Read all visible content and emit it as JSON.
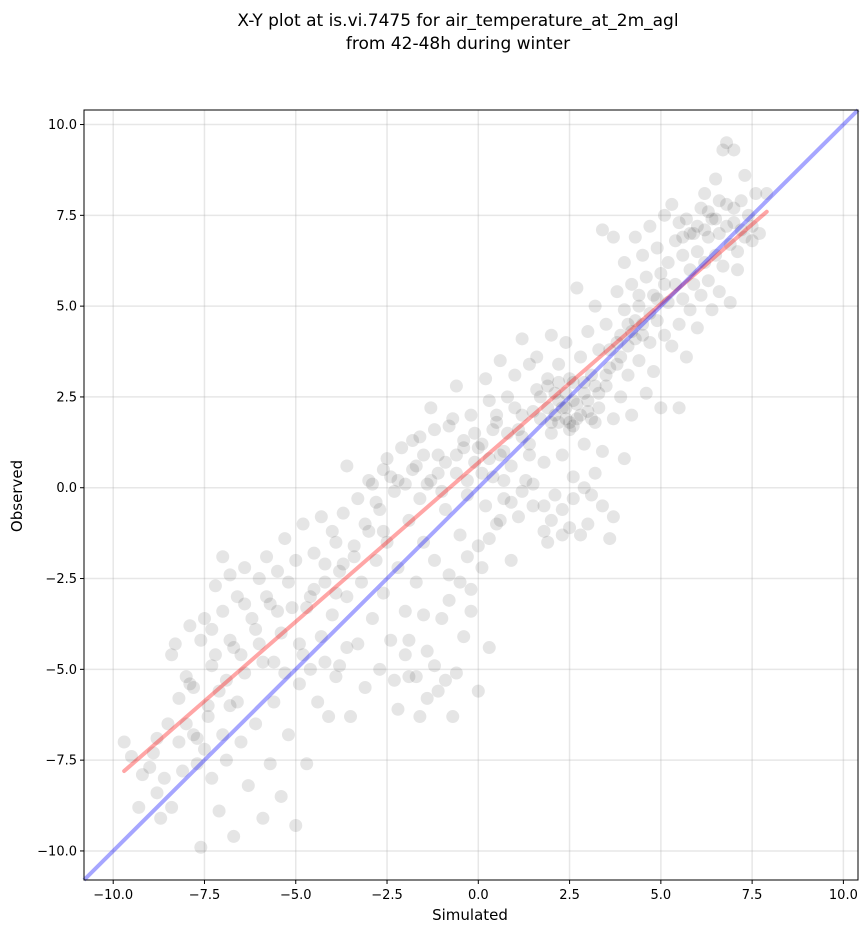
{
  "chart_data": {
    "type": "scatter",
    "title": [
      "X-Y plot at is.vi.7475 for air_temperature_at_2m_agl",
      "from 42-48h during winter"
    ],
    "xlabel": "Simulated",
    "ylabel": "Observed",
    "xlim": [
      -10.8,
      10.4
    ],
    "ylim": [
      -10.8,
      10.4
    ],
    "x_ticks": [
      -10.0,
      -7.5,
      -5.0,
      -2.5,
      0.0,
      2.5,
      5.0,
      7.5,
      10.0
    ],
    "y_ticks": [
      -10.0,
      -7.5,
      -5.0,
      -2.5,
      0.0,
      2.5,
      5.0,
      7.5,
      10.0
    ],
    "x_tick_labels": [
      "−10.0",
      "−7.5",
      "−5.0",
      "−2.5",
      "0.0",
      "2.5",
      "5.0",
      "7.5",
      "10.0"
    ],
    "y_tick_labels": [
      "−10.0",
      "−7.5",
      "−5.0",
      "−2.5",
      "0.0",
      "2.5",
      "5.0",
      "7.5",
      "10.0"
    ],
    "grid": true,
    "point_color": "#000000",
    "regression_line": {
      "color": "#ff0000",
      "x": [
        -9.7,
        7.9
      ],
      "y": [
        -7.8,
        7.6
      ]
    },
    "identity_line": {
      "color": "#0000ff",
      "x": [
        -10.8,
        10.4
      ],
      "y": [
        -10.8,
        10.4
      ]
    },
    "points": [
      [
        -9.7,
        -7.0
      ],
      [
        -9.5,
        -7.4
      ],
      [
        -9.3,
        -8.8
      ],
      [
        -9.0,
        -7.7
      ],
      [
        -8.9,
        -7.3
      ],
      [
        -8.8,
        -8.4
      ],
      [
        -8.7,
        -9.1
      ],
      [
        -8.6,
        -8.0
      ],
      [
        -8.5,
        -6.5
      ],
      [
        -8.4,
        -8.8
      ],
      [
        -8.4,
        -4.6
      ],
      [
        -8.3,
        -4.3
      ],
      [
        -8.2,
        -7.0
      ],
      [
        -8.1,
        -7.8
      ],
      [
        -8.0,
        -5.2
      ],
      [
        -7.9,
        -3.8
      ],
      [
        -7.8,
        -6.8
      ],
      [
        -7.8,
        -5.5
      ],
      [
        -7.7,
        -7.6
      ],
      [
        -7.6,
        -9.9
      ],
      [
        -7.6,
        -4.2
      ],
      [
        -7.5,
        -7.2
      ],
      [
        -7.5,
        -3.6
      ],
      [
        -7.4,
        -6.3
      ],
      [
        -7.3,
        -8.0
      ],
      [
        -7.3,
        -4.9
      ],
      [
        -7.2,
        -2.7
      ],
      [
        -7.1,
        -8.9
      ],
      [
        -7.1,
        -5.6
      ],
      [
        -7.0,
        -3.4
      ],
      [
        -7.0,
        -1.9
      ],
      [
        -6.9,
        -7.5
      ],
      [
        -6.8,
        -6.0
      ],
      [
        -6.8,
        -2.4
      ],
      [
        -6.7,
        -9.6
      ],
      [
        -6.7,
        -4.4
      ],
      [
        -6.6,
        -3.0
      ],
      [
        -6.5,
        -7.0
      ],
      [
        -6.4,
        -5.1
      ],
      [
        -6.4,
        -2.2
      ],
      [
        -6.3,
        -8.2
      ],
      [
        -6.2,
        -3.6
      ],
      [
        -6.1,
        -6.5
      ],
      [
        -6.0,
        -2.5
      ],
      [
        -5.9,
        -9.1
      ],
      [
        -5.9,
        -4.8
      ],
      [
        -5.8,
        -1.9
      ],
      [
        -5.7,
        -7.6
      ],
      [
        -5.7,
        -3.2
      ],
      [
        -5.6,
        -5.9
      ],
      [
        -5.5,
        -2.3
      ],
      [
        -5.4,
        -8.5
      ],
      [
        -5.4,
        -4.0
      ],
      [
        -5.3,
        -1.4
      ],
      [
        -5.2,
        -6.8
      ],
      [
        -5.1,
        -3.3
      ],
      [
        -5.0,
        -9.3
      ],
      [
        -5.0,
        -2.0
      ],
      [
        -4.9,
        -5.4
      ],
      [
        -4.8,
        -4.6
      ],
      [
        -4.8,
        -1.0
      ],
      [
        -4.7,
        -7.6
      ],
      [
        -4.6,
        -3.0
      ],
      [
        -4.5,
        -1.8
      ],
      [
        -4.4,
        -5.9
      ],
      [
        -4.3,
        -4.1
      ],
      [
        -4.3,
        -0.8
      ],
      [
        -4.2,
        -2.6
      ],
      [
        -4.1,
        -6.3
      ],
      [
        -4.0,
        -3.5
      ],
      [
        -3.9,
        -1.5
      ],
      [
        -3.8,
        -4.9
      ],
      [
        -3.8,
        -2.3
      ],
      [
        -3.7,
        -0.7
      ],
      [
        -3.6,
        0.6
      ],
      [
        -3.6,
        -3.0
      ],
      [
        -3.5,
        -6.3
      ],
      [
        -3.4,
        -1.9
      ],
      [
        -3.3,
        -4.3
      ],
      [
        -3.3,
        -0.3
      ],
      [
        -3.2,
        -2.6
      ],
      [
        -3.1,
        -5.5
      ],
      [
        -3.0,
        -1.2
      ],
      [
        -3.0,
        0.2
      ],
      [
        -2.9,
        -3.6
      ],
      [
        -2.8,
        -2.0
      ],
      [
        -2.7,
        -5.0
      ],
      [
        -2.7,
        -0.6
      ],
      [
        -2.6,
        -2.9
      ],
      [
        -2.5,
        0.8
      ],
      [
        -2.5,
        -1.5
      ],
      [
        -2.4,
        -4.2
      ],
      [
        -2.3,
        -0.1
      ],
      [
        -2.2,
        -6.1
      ],
      [
        -2.2,
        -2.2
      ],
      [
        -2.1,
        1.1
      ],
      [
        -2.0,
        -3.4
      ],
      [
        -1.9,
        -0.9
      ],
      [
        -1.9,
        -5.2
      ],
      [
        -1.8,
        0.5
      ],
      [
        -1.7,
        -2.6
      ],
      [
        -1.6,
        -6.3
      ],
      [
        -1.6,
        1.4
      ],
      [
        -1.5,
        -1.5
      ],
      [
        -1.4,
        -4.5
      ],
      [
        -1.4,
        0.1
      ],
      [
        -1.3,
        2.2
      ],
      [
        -1.2,
        -2.0
      ],
      [
        -1.1,
        -5.6
      ],
      [
        -1.1,
        0.9
      ],
      [
        -1.0,
        -3.6
      ],
      [
        -0.9,
        -0.6
      ],
      [
        -0.8,
        1.7
      ],
      [
        -0.8,
        -2.4
      ],
      [
        -0.7,
        -6.3
      ],
      [
        -0.6,
        0.4
      ],
      [
        -0.6,
        2.8
      ],
      [
        -0.5,
        -1.3
      ],
      [
        -0.4,
        -4.1
      ],
      [
        -0.4,
        1.3
      ],
      [
        -0.3,
        -0.2
      ],
      [
        -0.2,
        -2.8
      ],
      [
        -0.2,
        2.0
      ],
      [
        -0.1,
        0.7
      ],
      [
        0.0,
        -5.6
      ],
      [
        0.0,
        -1.6
      ],
      [
        0.1,
        1.2
      ],
      [
        0.2,
        3.0
      ],
      [
        0.2,
        -0.5
      ],
      [
        0.3,
        -4.4
      ],
      [
        0.3,
        2.4
      ],
      [
        0.4,
        0.3
      ],
      [
        0.5,
        -1.0
      ],
      [
        0.5,
        1.8
      ],
      [
        0.6,
        3.5
      ],
      [
        0.7,
        -0.3
      ],
      [
        0.7,
        1.0
      ],
      [
        0.8,
        2.5
      ],
      [
        0.9,
        -2.0
      ],
      [
        0.9,
        0.6
      ],
      [
        1.0,
        3.1
      ],
      [
        1.1,
        1.6
      ],
      [
        1.1,
        -0.8
      ],
      [
        1.2,
        4.1
      ],
      [
        1.2,
        2.0
      ],
      [
        1.3,
        0.2
      ],
      [
        1.4,
        3.4
      ],
      [
        1.4,
        1.2
      ],
      [
        1.5,
        -0.5
      ],
      [
        1.6,
        2.7
      ],
      [
        1.6,
        3.6
      ],
      [
        1.7,
        1.9
      ],
      [
        1.8,
        0.7
      ],
      [
        1.8,
        -1.2
      ],
      [
        1.9,
        3.0
      ],
      [
        1.9,
        2.2
      ],
      [
        2.0,
        4.2
      ],
      [
        2.0,
        1.5
      ],
      [
        2.1,
        -0.2
      ],
      [
        2.1,
        2.6
      ],
      [
        2.2,
        3.4
      ],
      [
        2.2,
        1.8
      ],
      [
        2.3,
        0.9
      ],
      [
        2.3,
        -1.3
      ],
      [
        2.4,
        2.2
      ],
      [
        2.4,
        4.0
      ],
      [
        2.5,
        1.6
      ],
      [
        2.5,
        3.0
      ],
      [
        2.6,
        2.4
      ],
      [
        2.6,
        0.3
      ],
      [
        2.7,
        5.5
      ],
      [
        2.7,
        1.9
      ],
      [
        2.8,
        3.6
      ],
      [
        2.8,
        -1.3
      ],
      [
        2.9,
        2.6
      ],
      [
        2.9,
        1.2
      ],
      [
        3.0,
        4.3
      ],
      [
        3.0,
        2.1
      ],
      [
        3.1,
        3.1
      ],
      [
        3.1,
        -0.2
      ],
      [
        3.2,
        1.8
      ],
      [
        3.2,
        5.0
      ],
      [
        3.3,
        2.6
      ],
      [
        3.3,
        3.8
      ],
      [
        3.4,
        7.1
      ],
      [
        3.4,
        1.0
      ],
      [
        3.5,
        2.8
      ],
      [
        3.5,
        4.5
      ],
      [
        3.6,
        -1.4
      ],
      [
        3.6,
        3.3
      ],
      [
        3.7,
        6.9
      ],
      [
        3.7,
        1.9
      ],
      [
        3.8,
        4.0
      ],
      [
        3.8,
        5.4
      ],
      [
        3.9,
        2.5
      ],
      [
        3.9,
        3.6
      ],
      [
        4.0,
        6.2
      ],
      [
        4.0,
        0.8
      ],
      [
        4.1,
        4.5
      ],
      [
        4.1,
        3.1
      ],
      [
        4.2,
        5.6
      ],
      [
        4.2,
        2.0
      ],
      [
        4.3,
        4.1
      ],
      [
        4.3,
        6.9
      ],
      [
        4.4,
        3.5
      ],
      [
        4.4,
        5.0
      ],
      [
        4.5,
        6.4
      ],
      [
        4.5,
        4.5
      ],
      [
        4.6,
        2.6
      ],
      [
        4.6,
        5.8
      ],
      [
        4.7,
        4.0
      ],
      [
        4.7,
        7.2
      ],
      [
        4.8,
        5.3
      ],
      [
        4.8,
        3.2
      ],
      [
        4.9,
        6.6
      ],
      [
        4.9,
        4.6
      ],
      [
        5.0,
        5.9
      ],
      [
        5.0,
        2.2
      ],
      [
        5.1,
        7.5
      ],
      [
        5.1,
        4.2
      ],
      [
        5.2,
        6.2
      ],
      [
        5.2,
        5.1
      ],
      [
        5.3,
        3.9
      ],
      [
        5.3,
        7.8
      ],
      [
        5.4,
        5.6
      ],
      [
        5.4,
        6.8
      ],
      [
        5.5,
        4.5
      ],
      [
        5.5,
        2.2
      ],
      [
        5.6,
        6.4
      ],
      [
        5.6,
        5.2
      ],
      [
        5.7,
        7.4
      ],
      [
        5.7,
        3.6
      ],
      [
        5.8,
        6.0
      ],
      [
        5.8,
        4.9
      ],
      [
        5.9,
        7.0
      ],
      [
        5.9,
        5.6
      ],
      [
        6.0,
        6.5
      ],
      [
        6.0,
        4.4
      ],
      [
        6.1,
        7.7
      ],
      [
        6.1,
        5.3
      ],
      [
        6.2,
        6.2
      ],
      [
        6.2,
        8.1
      ],
      [
        6.3,
        5.7
      ],
      [
        6.3,
        6.9
      ],
      [
        6.4,
        4.9
      ],
      [
        6.4,
        7.4
      ],
      [
        6.5,
        6.4
      ],
      [
        6.5,
        8.5
      ],
      [
        6.6,
        5.4
      ],
      [
        6.6,
        7.0
      ],
      [
        6.7,
        9.3
      ],
      [
        6.7,
        6.1
      ],
      [
        6.8,
        7.8
      ],
      [
        6.8,
        9.5
      ],
      [
        6.9,
        6.7
      ],
      [
        6.9,
        5.1
      ],
      [
        7.0,
        7.3
      ],
      [
        7.0,
        9.3
      ],
      [
        7.1,
        6.5
      ],
      [
        7.1,
        6.0
      ],
      [
        7.2,
        7.9
      ],
      [
        7.2,
        7.1
      ],
      [
        7.3,
        8.6
      ],
      [
        7.3,
        6.9
      ],
      [
        7.4,
        7.5
      ],
      [
        7.5,
        6.8
      ],
      [
        7.6,
        8.1
      ],
      [
        7.7,
        7.0
      ],
      [
        7.9,
        8.1
      ],
      [
        7.5,
        7.2
      ],
      [
        -1.8,
        1.3
      ],
      [
        -1.5,
        0.9
      ],
      [
        -1.2,
        1.6
      ],
      [
        -0.9,
        0.7
      ],
      [
        -0.7,
        1.9
      ],
      [
        -0.4,
        1.1
      ],
      [
        -0.1,
        1.5
      ],
      [
        0.1,
        0.4
      ],
      [
        -2.4,
        0.3
      ],
      [
        -2.8,
        -0.4
      ],
      [
        -3.1,
        -1.0
      ],
      [
        -2.6,
        -1.2
      ],
      [
        -2.0,
        0.1
      ],
      [
        -1.6,
        -0.3
      ],
      [
        -1.3,
        0.2
      ],
      [
        -1.0,
        -0.1
      ],
      [
        -3.4,
        -1.6
      ],
      [
        -3.7,
        -2.1
      ],
      [
        -3.9,
        -2.9
      ],
      [
        -4.2,
        -2.1
      ],
      [
        -4.5,
        -2.8
      ],
      [
        -4.0,
        -1.2
      ],
      [
        -4.7,
        -3.3
      ],
      [
        -5.2,
        -2.6
      ],
      [
        -5.5,
        -3.4
      ],
      [
        -5.8,
        -3.0
      ],
      [
        -6.1,
        -3.9
      ],
      [
        -6.4,
        -3.2
      ],
      [
        -6.8,
        -4.2
      ],
      [
        -7.2,
        -4.6
      ],
      [
        1.5,
        2.1
      ],
      [
        1.7,
        2.5
      ],
      [
        1.9,
        2.8
      ],
      [
        2.1,
        2.0
      ],
      [
        2.2,
        2.9
      ],
      [
        2.3,
        2.2
      ],
      [
        2.4,
        2.6
      ],
      [
        2.5,
        1.8
      ],
      [
        2.6,
        2.9
      ],
      [
        2.7,
        2.3
      ],
      [
        2.8,
        2.0
      ],
      [
        2.9,
        2.9
      ],
      [
        3.0,
        2.4
      ],
      [
        3.1,
        1.9
      ],
      [
        3.2,
        2.8
      ],
      [
        3.3,
        2.2
      ],
      [
        2.0,
        1.8
      ],
      [
        2.2,
        2.4
      ],
      [
        2.4,
        1.9
      ],
      [
        2.6,
        1.7
      ],
      [
        1.2,
        1.4
      ],
      [
        1.4,
        0.9
      ],
      [
        0.8,
        1.5
      ],
      [
        0.6,
        0.9
      ],
      [
        0.4,
        1.6
      ],
      [
        1.0,
        2.2
      ],
      [
        0.5,
        2.0
      ],
      [
        3.6,
        3.8
      ],
      [
        3.9,
        4.2
      ],
      [
        4.1,
        3.9
      ],
      [
        4.3,
        4.6
      ],
      [
        4.5,
        4.2
      ],
      [
        4.7,
        4.8
      ],
      [
        4.9,
        5.2
      ],
      [
        5.1,
        5.6
      ],
      [
        3.5,
        3.1
      ],
      [
        3.8,
        3.4
      ],
      [
        4.0,
        4.9
      ],
      [
        4.2,
        4.3
      ],
      [
        4.4,
        5.3
      ],
      [
        6.0,
        7.2
      ],
      [
        6.3,
        7.6
      ],
      [
        6.5,
        7.4
      ],
      [
        6.6,
        7.9
      ],
      [
        6.8,
        7.2
      ],
      [
        7.0,
        7.7
      ],
      [
        6.2,
        7.1
      ],
      [
        5.8,
        7.0
      ],
      [
        5.6,
        6.9
      ],
      [
        5.5,
        7.3
      ],
      [
        -8.0,
        -6.5
      ],
      [
        -7.7,
        -6.9
      ],
      [
        -7.4,
        -6.0
      ],
      [
        -7.0,
        -6.8
      ],
      [
        -6.6,
        -5.9
      ],
      [
        -8.2,
        -5.8
      ],
      [
        -7.9,
        -5.4
      ],
      [
        -9.2,
        -7.9
      ],
      [
        -8.8,
        -6.9
      ],
      [
        -6.5,
        -4.6
      ],
      [
        -6.9,
        -5.3
      ],
      [
        -7.3,
        -3.9
      ],
      [
        -6.0,
        -4.3
      ],
      [
        -5.6,
        -4.8
      ],
      [
        -5.3,
        -5.1
      ],
      [
        -4.9,
        -4.3
      ],
      [
        -4.6,
        -5.0
      ],
      [
        -4.2,
        -4.8
      ],
      [
        -3.9,
        -5.2
      ],
      [
        -3.6,
        -4.4
      ],
      [
        -2.3,
        -5.3
      ],
      [
        -2.0,
        -4.6
      ],
      [
        -1.7,
        -5.2
      ],
      [
        -1.4,
        -5.8
      ],
      [
        -1.2,
        -4.9
      ],
      [
        -0.9,
        -5.3
      ],
      [
        -0.6,
        -5.1
      ],
      [
        -1.9,
        -4.2
      ],
      [
        -1.5,
        -3.5
      ],
      [
        -0.8,
        -3.1
      ],
      [
        -0.5,
        -2.6
      ],
      [
        -0.2,
        -3.4
      ],
      [
        0.1,
        -2.2
      ],
      [
        -0.3,
        -1.9
      ],
      [
        0.3,
        -1.4
      ],
      [
        0.6,
        -0.9
      ],
      [
        0.9,
        -0.4
      ],
      [
        1.2,
        -0.1
      ],
      [
        1.5,
        0.1
      ],
      [
        1.8,
        -0.5
      ],
      [
        2.0,
        -0.9
      ],
      [
        2.3,
        -0.6
      ],
      [
        2.6,
        -0.3
      ],
      [
        2.9,
        0.0
      ],
      [
        3.2,
        0.4
      ],
      [
        3.4,
        -0.5
      ],
      [
        3.7,
        -0.8
      ],
      [
        3.0,
        -1.0
      ],
      [
        2.5,
        -1.1
      ],
      [
        1.9,
        -1.5
      ],
      [
        -2.9,
        0.1
      ],
      [
        -2.6,
        0.5
      ],
      [
        -2.2,
        0.2
      ],
      [
        -1.7,
        0.6
      ],
      [
        -1.1,
        0.4
      ],
      [
        -0.6,
        0.9
      ],
      [
        -0.3,
        0.2
      ],
      [
        0.0,
        1.1
      ],
      [
        0.3,
        0.8
      ],
      [
        0.7,
        0.2
      ]
    ]
  }
}
